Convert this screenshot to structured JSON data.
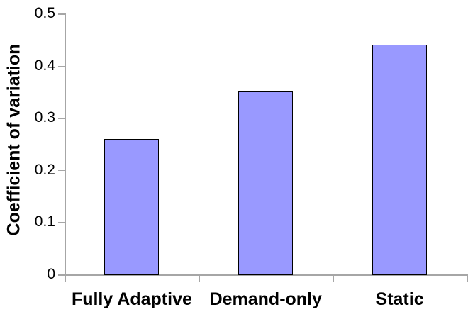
{
  "chart_data": {
    "type": "bar",
    "title": "",
    "categories": [
      "Fully Adaptive",
      "Demand-only",
      "Static"
    ],
    "values": [
      0.26,
      0.35,
      0.44
    ],
    "series": [
      {
        "name": "Coefficient of variation",
        "values": [
          0.26,
          0.35,
          0.44
        ]
      }
    ],
    "xlabel": "",
    "ylabel": "Coefficient of variation",
    "ylim": [
      0,
      0.5
    ],
    "ytick_step": 0.1,
    "ytick_labels": [
      "0",
      "0.1",
      "0.2",
      "0.3",
      "0.4",
      "0.5"
    ],
    "grid": false,
    "legend_position": "none",
    "colors": {
      "bar_fill": "#9999ff",
      "bar_border": "#000000",
      "axis": "#a6a6a6",
      "text": "#000000",
      "background": "#ffffff"
    }
  }
}
